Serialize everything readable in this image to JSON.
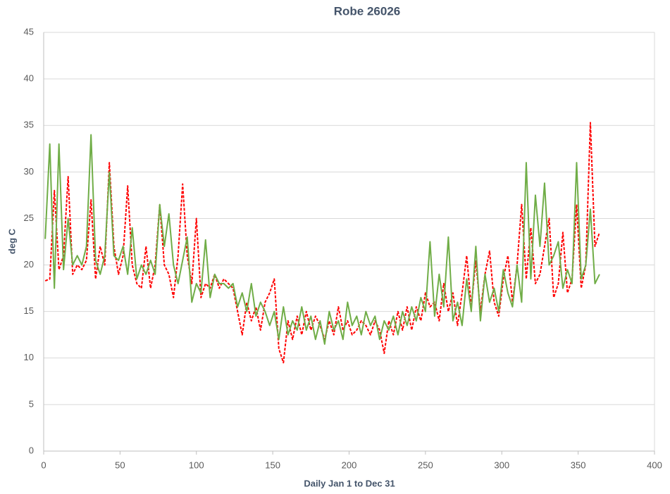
{
  "chart_data": {
    "type": "line",
    "title": "Robe 26026",
    "x_label": "Daily Jan 1 to Dec 31",
    "y_label": "deg C",
    "x": [
      1,
      4,
      7,
      10,
      13,
      16,
      19,
      22,
      25,
      28,
      31,
      34,
      37,
      40,
      43,
      46,
      49,
      52,
      55,
      58,
      61,
      64,
      67,
      70,
      73,
      76,
      79,
      82,
      85,
      88,
      91,
      94,
      97,
      100,
      103,
      106,
      109,
      112,
      115,
      118,
      121,
      124,
      127,
      130,
      133,
      136,
      139,
      142,
      145,
      148,
      151,
      154,
      157,
      160,
      163,
      166,
      169,
      172,
      175,
      178,
      181,
      184,
      187,
      190,
      193,
      196,
      199,
      202,
      205,
      208,
      211,
      214,
      217,
      220,
      223,
      226,
      229,
      232,
      235,
      238,
      241,
      244,
      247,
      250,
      253,
      256,
      259,
      262,
      265,
      268,
      271,
      274,
      277,
      280,
      283,
      286,
      289,
      292,
      295,
      298,
      301,
      304,
      307,
      310,
      313,
      316,
      319,
      322,
      325,
      328,
      331,
      334,
      337,
      340,
      343,
      346,
      349,
      352,
      355,
      358,
      361,
      364
    ],
    "series": [
      {
        "color": "#ff0000",
        "dashed": true,
        "values": [
          18.3,
          18.5,
          28,
          19.5,
          21,
          29.5,
          19,
          20,
          19.5,
          20.5,
          27,
          18.5,
          22,
          20,
          31,
          22,
          19,
          21,
          28.5,
          20,
          18,
          17.5,
          22,
          17.5,
          20,
          26.5,
          20,
          19,
          16.5,
          21,
          28.7,
          21,
          18,
          25,
          16.5,
          18,
          17.5,
          19,
          17.5,
          18.5,
          18,
          17.5,
          15,
          12.5,
          16,
          14,
          15.5,
          13,
          16,
          17,
          18.5,
          11,
          9.5,
          14,
          12,
          14.5,
          12.5,
          15,
          13,
          14.5,
          13.5,
          12,
          14,
          12.5,
          15.5,
          13,
          14,
          12.5,
          13,
          14,
          13.5,
          12.5,
          14,
          13,
          10.5,
          14,
          12.5,
          15,
          13,
          15.5,
          13,
          15.5,
          14,
          17,
          15.5,
          16,
          14,
          18,
          15,
          17,
          13.5,
          17,
          21,
          15.5,
          20.5,
          15,
          19,
          21.5,
          16,
          14.5,
          18.5,
          21,
          16,
          20,
          26.5,
          18.5,
          24,
          18,
          19,
          22,
          25,
          16.5,
          18,
          23.5,
          17,
          18.5,
          26.5,
          17.5,
          20,
          35.3,
          22,
          23.5
        ]
      },
      {
        "color": "#70ad47",
        "dashed": false,
        "values": [
          22.8,
          33,
          17.5,
          33,
          19.5,
          25,
          20,
          21,
          20,
          22,
          34,
          20.5,
          19,
          21,
          30,
          21,
          20.5,
          22,
          19,
          24,
          18.5,
          20,
          19,
          20.5,
          19,
          26.5,
          22,
          25.5,
          20,
          18,
          20.5,
          23,
          16,
          18,
          17,
          22.7,
          16.5,
          19,
          18,
          18,
          17.5,
          18,
          15.5,
          17,
          15,
          18,
          14.5,
          16,
          15,
          13.5,
          15,
          12,
          15.5,
          12.5,
          14,
          13,
          15.5,
          13,
          14.5,
          12,
          14,
          11.5,
          15,
          13,
          14,
          12,
          16,
          13.5,
          14.5,
          12.5,
          15,
          13.5,
          14.5,
          12,
          14,
          13,
          14.5,
          12.5,
          15,
          13.5,
          15.5,
          14,
          16.5,
          15,
          22.5,
          14.5,
          19,
          15.5,
          23,
          14,
          16,
          13.5,
          18.5,
          15,
          22,
          14,
          19,
          16,
          17.5,
          15,
          19.5,
          17,
          15.5,
          20,
          16,
          31,
          18.5,
          27.5,
          22,
          28.8,
          20,
          21,
          22.5,
          17.5,
          19.5,
          18,
          31,
          18.5,
          20,
          26,
          18,
          19
        ]
      }
    ],
    "xlim": [
      0,
      400
    ],
    "xticks": [
      0,
      50,
      100,
      150,
      200,
      250,
      300,
      350,
      400
    ],
    "ylim": [
      0,
      45
    ],
    "yticks": [
      0,
      5,
      10,
      15,
      20,
      25,
      30,
      35,
      40,
      45
    ],
    "grid": true
  }
}
